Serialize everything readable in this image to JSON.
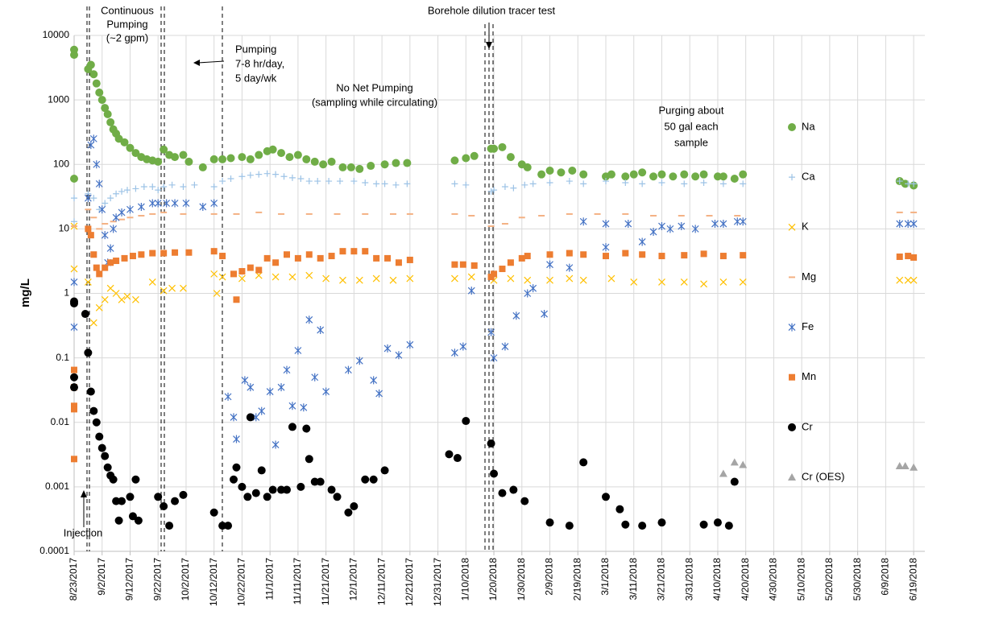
{
  "chart_data": {
    "type": "scatter",
    "ylabel": "mg/L",
    "log_y": true,
    "grid": true,
    "legend_position": "right",
    "xlim": [
      "8/23/2017",
      "6/23/2018"
    ],
    "ylim": [
      0.0001,
      10000
    ],
    "yticks": [
      0.0001,
      0.001,
      0.01,
      0.1,
      1,
      10,
      100,
      1000,
      10000
    ],
    "xticks": [
      "8/23/2017",
      "9/2/2017",
      "9/12/2017",
      "9/22/2017",
      "10/2/2017",
      "10/12/2017",
      "10/22/2017",
      "11/1/2017",
      "11/11/2017",
      "11/21/2017",
      "12/1/2017",
      "12/11/2017",
      "12/21/2017",
      "12/31/2017",
      "1/10/2018",
      "1/20/2018",
      "1/30/2018",
      "2/9/2018",
      "2/19/2018",
      "3/1/2018",
      "3/11/2018",
      "3/21/2018",
      "3/31/2018",
      "4/10/2018",
      "4/20/2018",
      "4/30/2018",
      "5/10/2018",
      "5/20/2018",
      "5/30/2018",
      "6/9/2018",
      "6/19/2018"
    ],
    "annotations": {
      "continuous": [
        "Continuous",
        "Pumping",
        "(~2 gpm)"
      ],
      "pumping": [
        "Pumping",
        "7-8 hr/day,",
        "5 day/wk"
      ],
      "no_net": [
        "No Net Pumping",
        "(sampling while circulating)"
      ],
      "tracer": "Borehole dilution tracer test",
      "purging": [
        "Purging about",
        "50 gal each",
        "sample"
      ],
      "injection": "Injection"
    },
    "series": [
      {
        "name": "Na",
        "color": "#70ad47",
        "marker": "circle",
        "x": [
          "8/23/2017",
          "8/23/2017",
          "8/23/2017",
          "8/28/2017",
          "8/29/2017",
          "8/30/2017",
          "8/31/2017",
          "9/1/2017",
          "9/2/2017",
          "9/3/2017",
          "9/4/2017",
          "9/5/2017",
          "9/6/2017",
          "9/7/2017",
          "9/8/2017",
          "9/10/2017",
          "9/12/2017",
          "9/14/2017",
          "9/16/2017",
          "9/18/2017",
          "9/20/2017",
          "9/22/2017",
          "9/24/2017",
          "9/26/2017",
          "9/28/2017",
          "10/1/2017",
          "10/3/2017",
          "10/8/2017",
          "10/12/2017",
          "10/15/2017",
          "10/18/2017",
          "10/22/2017",
          "10/25/2017",
          "10/28/2017",
          "10/31/2017",
          "11/2/2017",
          "11/5/2017",
          "11/8/2017",
          "11/11/2017",
          "11/14/2017",
          "11/17/2017",
          "11/20/2017",
          "11/23/2017",
          "11/27/2017",
          "11/30/2017",
          "12/3/2017",
          "12/7/2017",
          "12/12/2017",
          "12/16/2017",
          "12/20/2017",
          "1/6/2018",
          "1/10/2018",
          "1/13/2018",
          "1/19/2018",
          "1/20/2018",
          "1/23/2018",
          "1/26/2018",
          "1/30/2018",
          "2/1/2018",
          "2/6/2018",
          "2/9/2018",
          "2/13/2018",
          "2/17/2018",
          "2/21/2018",
          "3/1/2018",
          "3/3/2018",
          "3/8/2018",
          "3/11/2018",
          "3/14/2018",
          "3/18/2018",
          "3/21/2018",
          "3/25/2018",
          "3/29/2018",
          "4/2/2018",
          "4/5/2018",
          "4/10/2018",
          "4/12/2018",
          "4/16/2018",
          "4/19/2018",
          "6/14/2018",
          "6/16/2018",
          "6/19/2018"
        ],
        "values": [
          5000,
          6000,
          60,
          3000,
          3500,
          2500,
          1800,
          1300,
          1000,
          750,
          600,
          450,
          350,
          300,
          250,
          220,
          180,
          150,
          130,
          120,
          115,
          110,
          170,
          140,
          130,
          140,
          110,
          90,
          120,
          120,
          125,
          130,
          120,
          140,
          160,
          170,
          150,
          130,
          140,
          120,
          110,
          100,
          110,
          90,
          90,
          85,
          95,
          100,
          105,
          105,
          115,
          125,
          135,
          175,
          175,
          185,
          130,
          100,
          90,
          70,
          80,
          75,
          80,
          70,
          65,
          70,
          65,
          70,
          75,
          65,
          70,
          65,
          70,
          65,
          70,
          65,
          65,
          60,
          70,
          55,
          50,
          47
        ]
      },
      {
        "name": "Ca",
        "color": "#9dc3e6",
        "marker": "plus",
        "x": [
          "8/23/2017",
          "8/23/2017",
          "8/28/2017",
          "8/30/2017",
          "9/1/2017",
          "9/3/2017",
          "9/5/2017",
          "9/7/2017",
          "9/9/2017",
          "9/11/2017",
          "9/14/2017",
          "9/17/2017",
          "9/20/2017",
          "9/22/2017",
          "9/24/2017",
          "9/27/2017",
          "10/1/2017",
          "10/5/2017",
          "10/12/2017",
          "10/15/2017",
          "10/18/2017",
          "10/22/2017",
          "10/25/2017",
          "10/28/2017",
          "10/31/2017",
          "11/3/2017",
          "11/6/2017",
          "11/9/2017",
          "11/12/2017",
          "11/15/2017",
          "11/18/2017",
          "11/22/2017",
          "11/26/2017",
          "12/1/2017",
          "12/5/2017",
          "12/9/2017",
          "12/12/2017",
          "12/16/2017",
          "12/20/2017",
          "1/6/2018",
          "1/10/2018",
          "1/19/2018",
          "1/20/2018",
          "1/24/2018",
          "1/27/2018",
          "1/31/2018",
          "2/3/2018",
          "2/9/2018",
          "2/16/2018",
          "2/21/2018",
          "3/1/2018",
          "3/8/2018",
          "3/14/2018",
          "3/21/2018",
          "3/29/2018",
          "4/5/2018",
          "4/12/2018",
          "4/19/2018",
          "6/14/2018",
          "6/17/2018",
          "6/19/2018"
        ],
        "values": [
          30,
          13,
          35,
          30,
          20,
          25,
          30,
          35,
          38,
          40,
          42,
          45,
          45,
          40,
          45,
          48,
          45,
          48,
          45,
          55,
          60,
          65,
          68,
          70,
          72,
          70,
          65,
          62,
          60,
          55,
          55,
          55,
          55,
          55,
          52,
          50,
          50,
          48,
          50,
          50,
          48,
          38,
          40,
          45,
          43,
          48,
          50,
          52,
          55,
          50,
          55,
          52,
          50,
          52,
          50,
          52,
          50,
          50,
          55,
          50,
          50
        ]
      },
      {
        "name": "K",
        "color": "#ffc000",
        "marker": "x",
        "x": [
          "8/23/2017",
          "8/23/2017",
          "8/28/2017",
          "8/30/2017",
          "9/1/2017",
          "9/3/2017",
          "9/5/2017",
          "9/7/2017",
          "9/9/2017",
          "9/11/2017",
          "9/14/2017",
          "9/20/2017",
          "9/24/2017",
          "9/27/2017",
          "10/1/2017",
          "10/12/2017",
          "10/13/2017",
          "10/15/2017",
          "10/22/2017",
          "10/28/2017",
          "11/3/2017",
          "11/9/2017",
          "11/15/2017",
          "11/21/2017",
          "11/27/2017",
          "12/3/2017",
          "12/9/2017",
          "12/15/2017",
          "12/21/2017",
          "1/6/2018",
          "1/12/2018",
          "1/20/2018",
          "1/26/2018",
          "2/1/2018",
          "2/9/2018",
          "2/16/2018",
          "2/21/2018",
          "3/3/2018",
          "3/11/2018",
          "3/21/2018",
          "3/29/2018",
          "4/5/2018",
          "4/12/2018",
          "4/19/2018",
          "6/14/2018",
          "6/17/2018",
          "6/19/2018"
        ],
        "values": [
          2.4,
          11,
          1.5,
          0.35,
          0.6,
          0.8,
          1.2,
          1,
          0.8,
          0.9,
          0.8,
          1.5,
          1.1,
          1.2,
          1.2,
          2,
          1,
          1.8,
          1.7,
          1.9,
          1.8,
          1.8,
          1.9,
          1.7,
          1.6,
          1.6,
          1.7,
          1.6,
          1.7,
          1.7,
          1.8,
          1.6,
          1.7,
          1.6,
          1.6,
          1.7,
          1.6,
          1.7,
          1.5,
          1.5,
          1.5,
          1.4,
          1.5,
          1.5,
          1.6,
          1.6,
          1.6
        ]
      },
      {
        "name": "Mg",
        "color": "#f4b183",
        "marker": "dash",
        "x": [
          "8/23/2017",
          "8/28/2017",
          "8/30/2017",
          "9/1/2017",
          "9/3/2017",
          "9/6/2017",
          "9/9/2017",
          "9/12/2017",
          "9/16/2017",
          "9/20/2017",
          "9/24/2017",
          "10/1/2017",
          "10/12/2017",
          "10/20/2017",
          "10/28/2017",
          "11/5/2017",
          "11/15/2017",
          "11/25/2017",
          "12/5/2017",
          "12/15/2017",
          "12/21/2017",
          "1/6/2018",
          "1/12/2018",
          "1/19/2018",
          "1/24/2018",
          "1/30/2018",
          "2/6/2018",
          "2/16/2018",
          "2/26/2018",
          "3/8/2018",
          "3/18/2018",
          "3/28/2018",
          "4/7/2018",
          "4/17/2018",
          "6/14/2018",
          "6/19/2018"
        ],
        "values": [
          11,
          20,
          15,
          10,
          12,
          13,
          14,
          15,
          16,
          17,
          18,
          17,
          17,
          17,
          18,
          17,
          17,
          17,
          17,
          17,
          17,
          17,
          16,
          11,
          12,
          15,
          16,
          17,
          17,
          17,
          16,
          16,
          16,
          16,
          18,
          18
        ]
      },
      {
        "name": "Fe",
        "color": "#4472c4",
        "marker": "asterisk",
        "x": [
          "8/23/2017",
          "8/23/2017",
          "8/28/2017",
          "8/29/2017",
          "8/30/2017",
          "8/31/2017",
          "9/1/2017",
          "9/2/2017",
          "9/3/2017",
          "9/4/2017",
          "9/5/2017",
          "9/6/2017",
          "9/7/2017",
          "9/9/2017",
          "9/12/2017",
          "9/16/2017",
          "9/20/2017",
          "9/22/2017",
          "9/25/2017",
          "9/28/2017",
          "10/2/2017",
          "10/8/2017",
          "10/12/2017",
          "10/17/2017",
          "10/19/2017",
          "10/20/2017",
          "10/23/2017",
          "10/25/2017",
          "10/27/2017",
          "10/29/2017",
          "11/1/2017",
          "11/3/2017",
          "11/5/2017",
          "11/7/2017",
          "11/9/2017",
          "11/11/2017",
          "11/13/2017",
          "11/15/2017",
          "11/17/2017",
          "11/19/2017",
          "11/21/2017",
          "11/29/2017",
          "12/3/2017",
          "12/8/2017",
          "12/10/2017",
          "12/13/2017",
          "12/17/2017",
          "12/21/2017",
          "1/6/2018",
          "1/9/2018",
          "1/12/2018",
          "1/19/2018",
          "1/20/2018",
          "1/24/2018",
          "1/28/2018",
          "2/1/2018",
          "2/3/2018",
          "2/7/2018",
          "2/9/2018",
          "2/16/2018",
          "2/21/2018",
          "3/1/2018",
          "3/1/2018",
          "3/9/2018",
          "3/14/2018",
          "3/18/2018",
          "3/21/2018",
          "3/24/2018",
          "3/28/2018",
          "4/2/2018",
          "4/9/2018",
          "4/12/2018",
          "4/17/2018",
          "4/19/2018",
          "6/14/2018",
          "6/17/2018",
          "6/19/2018"
        ],
        "values": [
          1.5,
          0.3,
          30,
          200,
          250,
          100,
          50,
          20,
          8,
          3,
          5,
          10,
          15,
          18,
          20,
          22,
          25,
          25,
          25,
          25,
          25,
          22,
          25,
          0.025,
          0.012,
          0.0055,
          0.045,
          0.035,
          0.012,
          0.015,
          0.03,
          0.0045,
          0.035,
          0.065,
          0.018,
          0.13,
          0.017,
          0.39,
          0.05,
          0.27,
          0.03,
          0.065,
          0.09,
          0.045,
          0.028,
          0.14,
          0.11,
          0.16,
          0.12,
          0.15,
          1.1,
          0.25,
          0.1,
          0.15,
          0.45,
          1,
          1.2,
          0.48,
          2.8,
          2.5,
          13,
          5.2,
          12,
          12,
          6.3,
          9,
          11,
          10,
          11,
          10,
          12,
          12,
          13,
          13,
          12,
          12,
          12
        ]
      },
      {
        "name": "Mn",
        "color": "#ed7d31",
        "marker": "square",
        "x": [
          "8/23/2017",
          "8/23/2017",
          "8/23/2017",
          "8/23/2017",
          "8/23/2017",
          "8/28/2017",
          "8/29/2017",
          "8/30/2017",
          "8/31/2017",
          "9/1/2017",
          "9/3/2017",
          "9/5/2017",
          "9/7/2017",
          "9/10/2017",
          "9/13/2017",
          "9/16/2017",
          "9/20/2017",
          "9/24/2017",
          "9/28/2017",
          "10/3/2017",
          "10/12/2017",
          "10/15/2017",
          "10/19/2017",
          "10/20/2017",
          "10/22/2017",
          "10/25/2017",
          "10/28/2017",
          "10/31/2017",
          "11/3/2017",
          "11/7/2017",
          "11/11/2017",
          "11/15/2017",
          "11/19/2017",
          "11/23/2017",
          "11/27/2017",
          "12/1/2017",
          "12/5/2017",
          "12/9/2017",
          "12/13/2017",
          "12/17/2017",
          "12/21/2017",
          "1/6/2018",
          "1/9/2018",
          "1/13/2018",
          "1/19/2018",
          "1/20/2018",
          "1/23/2018",
          "1/26/2018",
          "1/30/2018",
          "2/1/2018",
          "2/9/2018",
          "2/16/2018",
          "2/21/2018",
          "3/1/2018",
          "3/8/2018",
          "3/14/2018",
          "3/21/2018",
          "3/29/2018",
          "4/5/2018",
          "4/12/2018",
          "4/19/2018",
          "6/14/2018",
          "6/17/2018",
          "6/19/2018"
        ],
        "values": [
          0.065,
          0.035,
          0.018,
          0.016,
          0.0027,
          10,
          8,
          4,
          2.5,
          2,
          2.5,
          3,
          3.2,
          3.5,
          3.8,
          4,
          4.2,
          4.2,
          4.3,
          4.3,
          4.5,
          3.8,
          2,
          0.8,
          2.2,
          2.5,
          2.3,
          3.5,
          3,
          4,
          3.5,
          4,
          3.5,
          3.8,
          4.5,
          4.5,
          4.5,
          3.5,
          3.5,
          3,
          3.3,
          2.8,
          2.8,
          2.7,
          1.8,
          2,
          2.4,
          3,
          3.5,
          3.8,
          4,
          4.2,
          4,
          3.8,
          4.2,
          4,
          3.8,
          3.9,
          4.1,
          3.8,
          3.9,
          3.7,
          3.8,
          3.6
        ]
      },
      {
        "name": "Cr",
        "color": "#000000",
        "marker": "circle",
        "x": [
          "8/23/2017",
          "8/23/2017",
          "8/23/2017",
          "8/23/2017",
          "8/27/2017",
          "8/28/2017",
          "8/29/2017",
          "8/30/2017",
          "8/31/2017",
          "9/1/2017",
          "9/2/2017",
          "9/3/2017",
          "9/4/2017",
          "9/5/2017",
          "9/6/2017",
          "9/7/2017",
          "9/8/2017",
          "9/9/2017",
          "9/12/2017",
          "9/13/2017",
          "9/14/2017",
          "9/15/2017",
          "9/22/2017",
          "9/24/2017",
          "9/26/2017",
          "9/28/2017",
          "10/1/2017",
          "10/12/2017",
          "10/15/2017",
          "10/17/2017",
          "10/19/2017",
          "10/20/2017",
          "10/22/2017",
          "10/24/2017",
          "10/25/2017",
          "10/27/2017",
          "10/29/2017",
          "10/31/2017",
          "11/2/2017",
          "11/5/2017",
          "11/7/2017",
          "11/9/2017",
          "11/12/2017",
          "11/14/2017",
          "11/15/2017",
          "11/17/2017",
          "11/19/2017",
          "11/23/2017",
          "11/25/2017",
          "11/29/2017",
          "12/1/2017",
          "12/5/2017",
          "12/8/2017",
          "12/12/2017",
          "1/4/2018",
          "1/7/2018",
          "1/10/2018",
          "1/19/2018",
          "1/20/2018",
          "1/23/2018",
          "1/27/2018",
          "1/31/2018",
          "2/9/2018",
          "2/16/2018",
          "2/21/2018",
          "3/1/2018",
          "3/6/2018",
          "3/8/2018",
          "3/14/2018",
          "3/21/2018",
          "4/5/2018",
          "4/10/2018",
          "4/14/2018",
          "4/16/2018"
        ],
        "values": [
          0.7,
          0.75,
          0.035,
          0.05,
          0.48,
          0.12,
          0.03,
          0.015,
          0.01,
          0.006,
          0.004,
          0.003,
          0.002,
          0.0015,
          0.0013,
          0.0006,
          0.0003,
          0.0006,
          0.0007,
          0.00035,
          0.0013,
          0.0003,
          0.0007,
          0.0005,
          0.00025,
          0.0006,
          0.00075,
          0.0004,
          0.00025,
          0.00025,
          0.0013,
          0.002,
          0.001,
          0.0007,
          0.012,
          0.0008,
          0.0018,
          0.0007,
          0.0009,
          0.0009,
          0.0009,
          0.0085,
          0.001,
          0.008,
          0.0027,
          0.0012,
          0.0012,
          0.0009,
          0.0007,
          0.0004,
          0.0005,
          0.0013,
          0.0013,
          0.0018,
          0.0032,
          0.0028,
          0.0105,
          0.0047,
          0.0016,
          0.0008,
          0.0009,
          0.0006,
          0.00028,
          0.00025,
          0.0024,
          0.0007,
          0.00045,
          0.00026,
          0.00025,
          0.00028,
          0.00026,
          0.00028,
          0.00025,
          0.0012
        ]
      },
      {
        "name": "Cr (OES)",
        "color": "#a5a5a5",
        "marker": "triangle",
        "x": [
          "4/12/2018",
          "4/16/2018",
          "4/19/2018",
          "6/14/2018",
          "6/16/2018",
          "6/19/2018"
        ],
        "values": [
          0.0016,
          0.0024,
          0.0022,
          0.0021,
          0.0021,
          0.002
        ]
      }
    ]
  }
}
